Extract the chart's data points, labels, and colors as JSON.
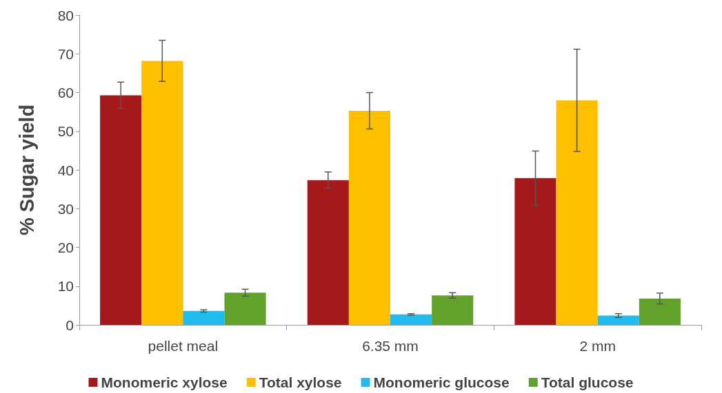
{
  "chart_data": {
    "type": "bar",
    "ylabel": "% Sugar yield",
    "categories": [
      "pellet meal",
      "6.35 mm",
      "2 mm"
    ],
    "ylim": [
      0,
      80
    ],
    "yticks": [
      0,
      10,
      20,
      30,
      40,
      50,
      60,
      70,
      80
    ],
    "grid": false,
    "legend": "bottom",
    "series": [
      {
        "name": "Monomeric xylose",
        "color": "#a6191b",
        "values": [
          59.3,
          37.4,
          37.9
        ],
        "errors": [
          3.4,
          2.1,
          7.0
        ]
      },
      {
        "name": "Total xylose",
        "color": "#ffc000",
        "values": [
          68.2,
          55.3,
          58.0
        ],
        "errors": [
          5.3,
          4.7,
          13.2
        ]
      },
      {
        "name": "Monomeric glucose",
        "color": "#22bbee",
        "values": [
          3.6,
          2.7,
          2.4
        ],
        "errors": [
          0.3,
          0.2,
          0.5
        ]
      },
      {
        "name": "Total glucose",
        "color": "#63a22a",
        "values": [
          8.3,
          7.6,
          6.8
        ],
        "errors": [
          0.9,
          0.7,
          1.4
        ]
      }
    ]
  }
}
